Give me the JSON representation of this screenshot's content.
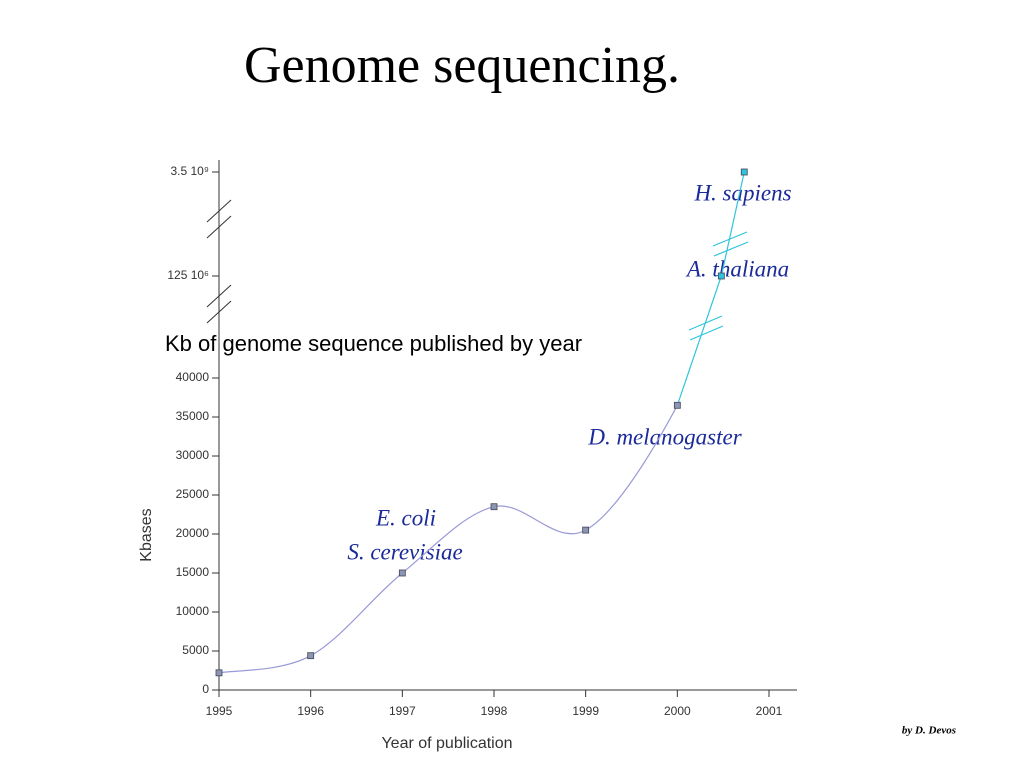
{
  "page_title": "Genome sequencing.",
  "credit": "by  D. Devos",
  "chart_data": {
    "type": "line",
    "title": "Kb of genome sequence published by year",
    "xlabel": "Year of publication",
    "ylabel": "Kbases",
    "x": [
      1995,
      1996,
      1997,
      1998,
      1999,
      2000,
      2000.48,
      2000.73
    ],
    "values": [
      2200,
      4400,
      15000,
      23500,
      20500,
      36500,
      125000000,
      3500000000
    ],
    "color": "#9a9ad8",
    "break_color": "#2ec4dc",
    "xlim": [
      1995,
      2001
    ],
    "xticks": [
      1995,
      1996,
      1997,
      1998,
      1999,
      2000,
      2001
    ],
    "ylim": [
      0,
      3500000000
    ],
    "yticks": [
      0,
      5000,
      10000,
      15000,
      20000,
      25000,
      30000,
      35000,
      40000,
      {
        "value": 125000000,
        "label": "125 10⁶"
      },
      {
        "value": 3500000000,
        "label": "3.5 10⁹"
      }
    ],
    "annotations": [
      "E. coli",
      "S. cerevisiae",
      "D. melanogaster",
      "A. thaliana",
      "H. sapiens"
    ]
  }
}
